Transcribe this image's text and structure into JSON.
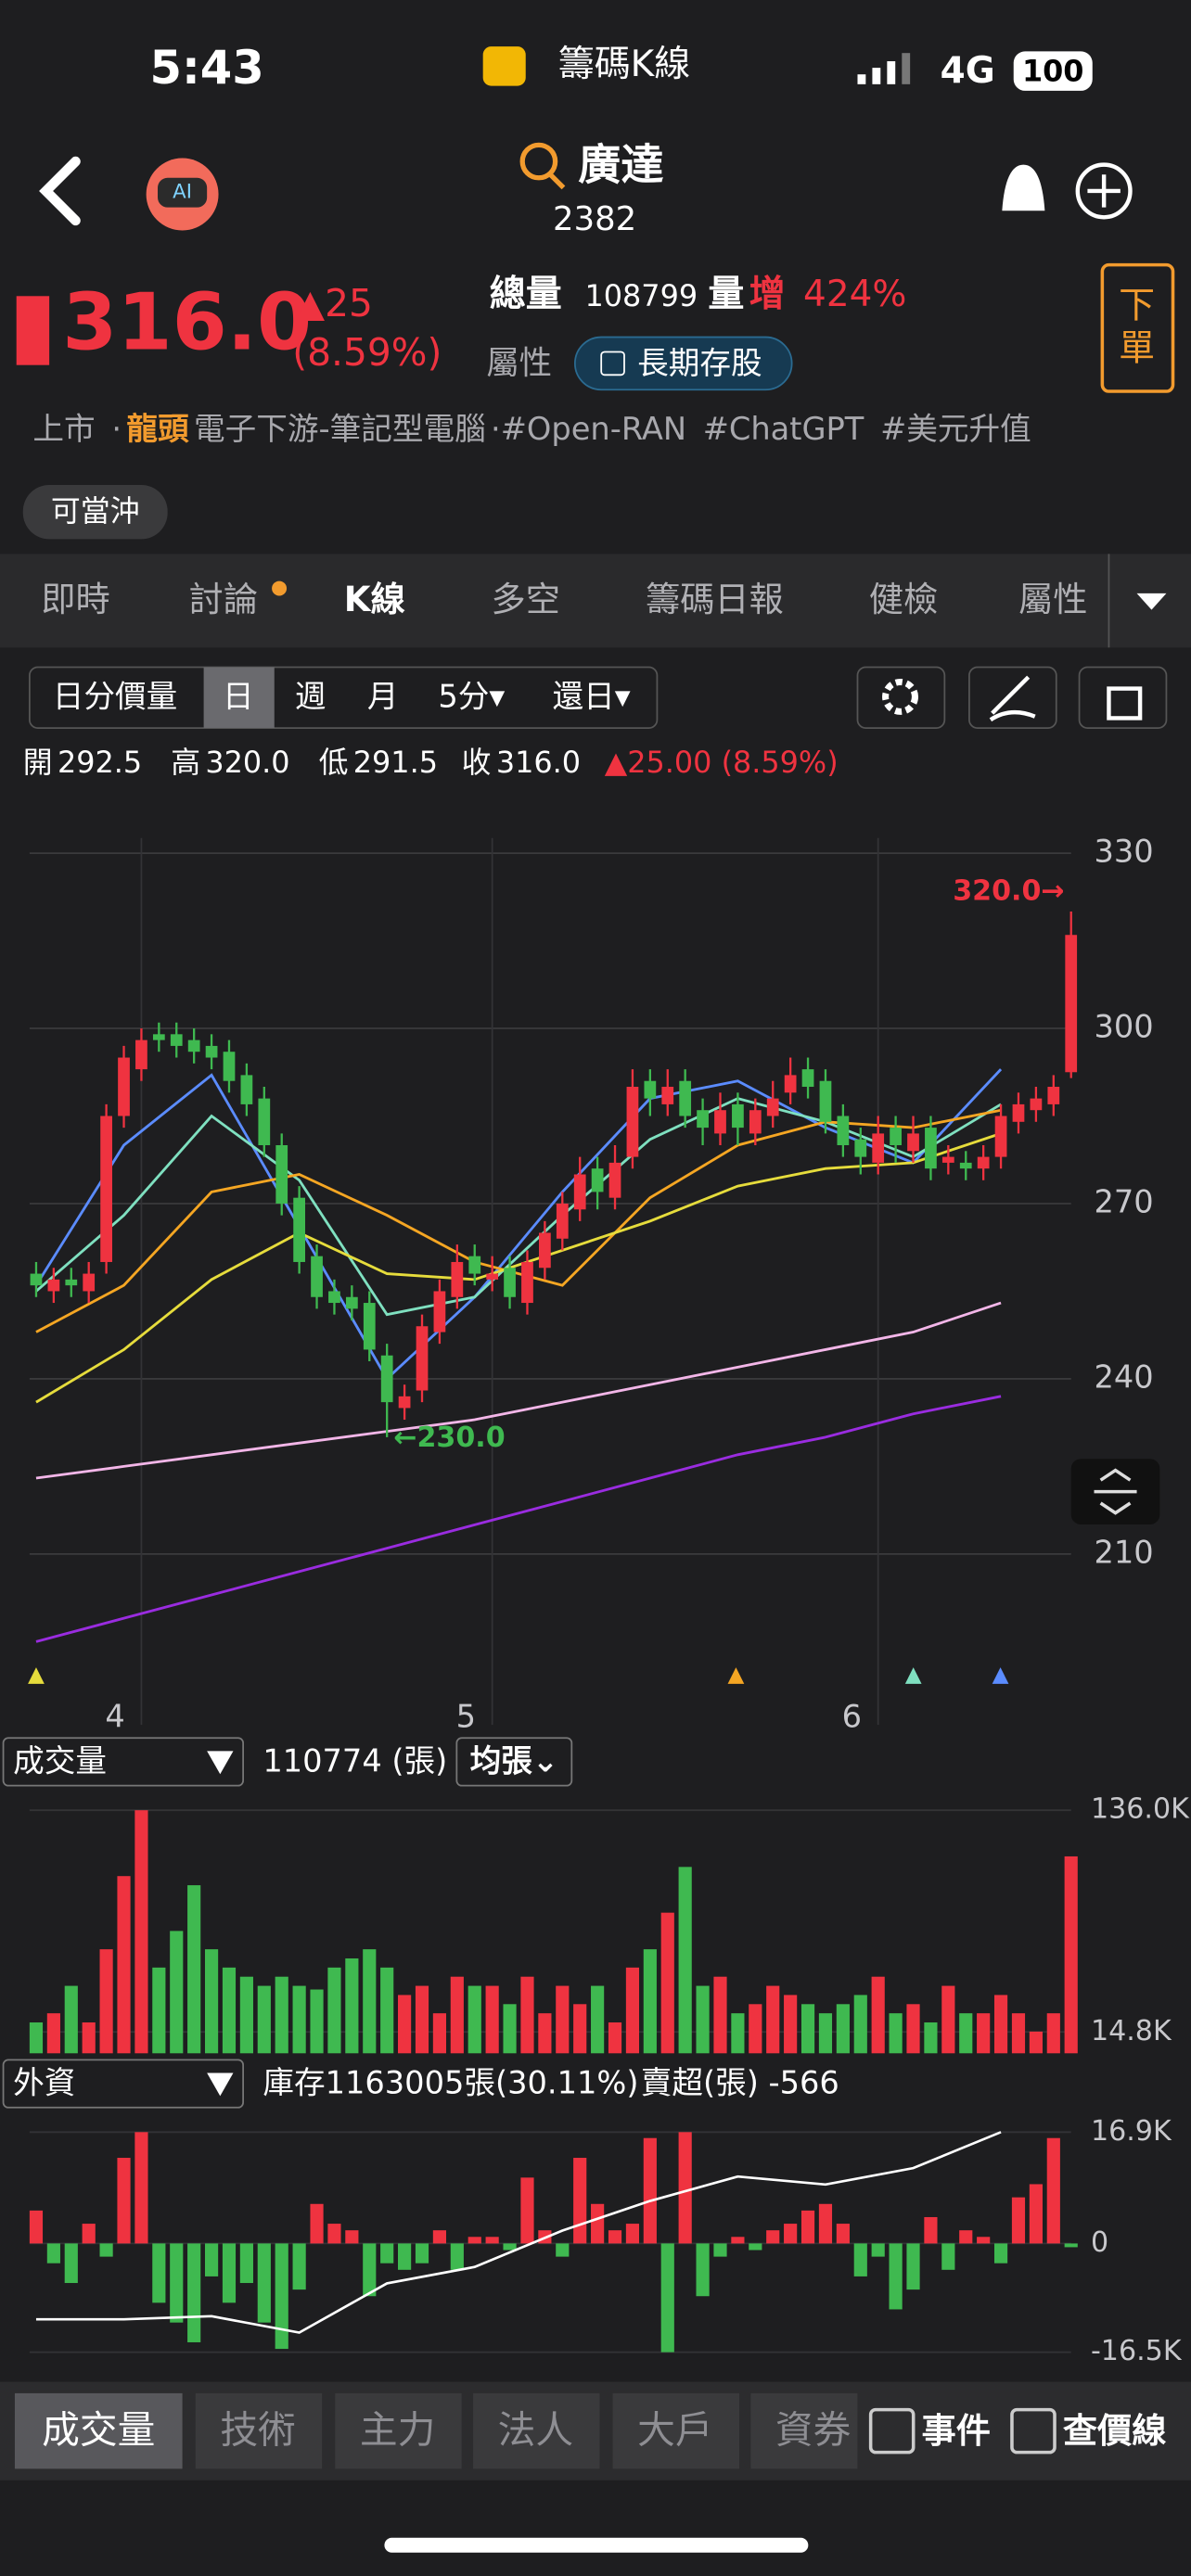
{
  "status_bar": {
    "time": "5:43",
    "app": "籌碼K線",
    "network": "4G",
    "battery": "100"
  },
  "header": {
    "name": "廣達",
    "code": "2382"
  },
  "quote": {
    "price": "316.0",
    "change": "▲25",
    "change_pct": "(8.59%)",
    "total_volume_label": "總量",
    "total_volume": "108799",
    "volume_label": "量",
    "volume_up": "增",
    "volume_pct": "424%",
    "attribute_label": "屬性",
    "attribute": "長期存股",
    "order": "下單"
  },
  "tags": [
    "上市",
    "·",
    "龍頭",
    "電子下游-筆記型電腦",
    "·#Open-RAN",
    "#ChatGPT",
    "#美元升值"
  ],
  "day_trade": "可當沖",
  "tabs": [
    "即時",
    "討論",
    "K線",
    "多空",
    "籌碼日報",
    "健檢",
    "屬性"
  ],
  "toolbar": [
    "日分價量",
    "日",
    "週",
    "月",
    "5分▾",
    "還日▾"
  ],
  "ohlc_row": [
    "開",
    "292.5",
    "高",
    "320.0",
    "低",
    "291.5",
    "收",
    "316.0",
    "▲25.00 (8.59%)"
  ],
  "price_chart": {
    "ylim": [
      192,
      334
    ],
    "yticks": [
      330,
      300,
      270,
      240,
      210
    ],
    "up_color": "#ef3340",
    "down_color": "#3fb950",
    "open": [
      258,
      255,
      257,
      255,
      260,
      285,
      293,
      299,
      299,
      298,
      297,
      296,
      292,
      288,
      280,
      271,
      261,
      255,
      254,
      253,
      244,
      235,
      238,
      248,
      254,
      261,
      257,
      259,
      253,
      259,
      264,
      269,
      276,
      271,
      278,
      291,
      287,
      291,
      286,
      282,
      287,
      282,
      285,
      289,
      293,
      291,
      285,
      281,
      277,
      283,
      279,
      283,
      277,
      277,
      276,
      278,
      284,
      286,
      287,
      292.5
    ],
    "high": [
      260,
      259,
      259,
      260,
      287,
      297,
      300,
      301,
      301,
      300,
      299,
      298,
      294,
      290,
      282,
      273,
      263,
      257,
      256,
      255,
      246,
      239,
      251,
      257,
      263,
      263,
      261,
      261,
      262,
      267,
      272,
      278,
      278,
      280,
      293,
      293,
      293,
      293,
      288,
      289,
      289,
      288,
      291,
      295,
      295,
      293,
      287,
      283,
      285,
      285,
      285,
      285,
      280,
      279,
      280,
      287,
      289,
      290,
      292,
      320
    ],
    "low": [
      254,
      253,
      254,
      253,
      258,
      283,
      291,
      296,
      295,
      294,
      293,
      289,
      285,
      278,
      268,
      258,
      252,
      251,
      250,
      243,
      230,
      233,
      236,
      246,
      252,
      256,
      255,
      252,
      251,
      257,
      262,
      267,
      269,
      269,
      276,
      285,
      285,
      283,
      280,
      280,
      280,
      280,
      283,
      287,
      288,
      282,
      278,
      275,
      275,
      277,
      277,
      274,
      275,
      274,
      274,
      276,
      282,
      284,
      285,
      291.5
    ],
    "close": [
      256,
      257,
      256,
      258,
      285,
      295,
      298,
      298,
      297,
      296,
      295,
      291,
      287,
      280,
      270,
      260,
      254,
      253,
      252,
      245,
      236,
      237,
      249,
      255,
      260,
      258,
      258,
      254,
      260,
      265,
      270,
      275,
      272,
      277,
      290,
      288,
      290,
      285,
      283,
      286,
      283,
      286,
      288,
      292,
      290,
      284,
      280,
      278,
      282,
      280,
      282,
      276,
      278,
      276,
      278,
      285,
      287,
      288,
      290,
      316
    ],
    "ma_index": [
      0,
      5,
      10,
      15,
      20,
      25,
      30,
      35,
      40,
      45,
      50,
      55
    ],
    "ma": [
      {
        "color": "#5b8cff",
        "values": [
          256,
          280,
          292,
          266,
          240,
          254,
          272,
          288,
          291,
          283,
          277,
          293
        ]
      },
      {
        "color": "#7fe0c0",
        "values": [
          255,
          268,
          285,
          274,
          251,
          254,
          268,
          281,
          288,
          284,
          278,
          287
        ]
      },
      {
        "color": "#f5a623",
        "values": [
          248,
          256,
          272,
          275,
          268,
          260,
          256,
          271,
          280,
          284,
          283,
          286
        ]
      },
      {
        "color": "#e6dc3c",
        "values": [
          236,
          245,
          257,
          265,
          258,
          257,
          262,
          267,
          273,
          276,
          277,
          282
        ]
      },
      {
        "color": "#f3b6e8",
        "values": [
          223,
          225,
          227,
          229,
          231,
          233,
          236,
          239,
          242,
          245,
          248,
          253
        ]
      },
      {
        "color": "#9a2ce0",
        "values": [
          195,
          199,
          203,
          207,
          211,
          215,
          219,
          223,
          227,
          230,
          234,
          237
        ]
      }
    ],
    "months": [
      "4",
      "5",
      "6"
    ],
    "month_starts": [
      6,
      26,
      48
    ],
    "high_label": "320.0→",
    "low_label": "←230.0"
  },
  "volume": {
    "select": "成交量",
    "total": "110774 (張)",
    "avg": "均張⌄",
    "ylim": [
      3130,
      136000
    ],
    "yticks": [
      {
        "value": 136000,
        "label": "136.0K"
      },
      {
        "value": 14800,
        "label": "14.8K"
      }
    ],
    "values": [
      20000,
      25000,
      40000,
      20000,
      60000,
      100000,
      136000,
      50000,
      70000,
      95000,
      60000,
      50000,
      45000,
      40000,
      45000,
      40000,
      38000,
      50000,
      55000,
      60000,
      50000,
      35000,
      40000,
      25000,
      45000,
      40000,
      40000,
      30000,
      45000,
      25000,
      40000,
      30000,
      40000,
      20000,
      50000,
      60000,
      80000,
      105000,
      40000,
      45000,
      25000,
      30000,
      40000,
      35000,
      30000,
      25000,
      30000,
      35000,
      45000,
      25000,
      30000,
      20000,
      40000,
      25000,
      25000,
      35000,
      25000,
      15000,
      25000,
      110774
    ]
  },
  "foreign": {
    "select": "外資",
    "inventory_text": "庫存1163005張(30.11%)",
    "net_text": "賣超(張) -566",
    "ylim": [
      -16500,
      16900
    ],
    "yticks": [
      {
        "value": 16900,
        "label": "16.9K"
      },
      0,
      {
        "value": -16500,
        "label": "-16.5K"
      }
    ],
    "values": [
      5000,
      -3000,
      -6000,
      3000,
      -2000,
      13000,
      16900,
      -9000,
      -12000,
      -15000,
      -5000,
      -9000,
      -6000,
      -12000,
      -16000,
      -7000,
      6000,
      3000,
      2000,
      -8000,
      -3000,
      -4000,
      -3000,
      2000,
      -4000,
      1000,
      1000,
      -1000,
      10000,
      2000,
      -2000,
      13000,
      6000,
      2000,
      3000,
      16000,
      -16500,
      16900,
      -8000,
      -2000,
      1000,
      -1000,
      2000,
      3000,
      5000,
      6000,
      3000,
      -5000,
      -2000,
      -10000,
      -7000,
      4000,
      -4000,
      2000,
      1000,
      -3000,
      7000,
      9000,
      16000,
      -566
    ],
    "inventory": {
      "ylim": [
        1100000,
        1163005
      ],
      "values": [
        1109400,
        1109400,
        1110300,
        1105600,
        1119700,
        1124400,
        1134800,
        1143300,
        1150300,
        1148000,
        1152700,
        1163005
      ]
    }
  },
  "bottom_tabs": [
    "成交量",
    "技術",
    "主力",
    "法人",
    "大戶",
    "資券"
  ],
  "checkboxes": [
    "事件",
    "查價線"
  ]
}
